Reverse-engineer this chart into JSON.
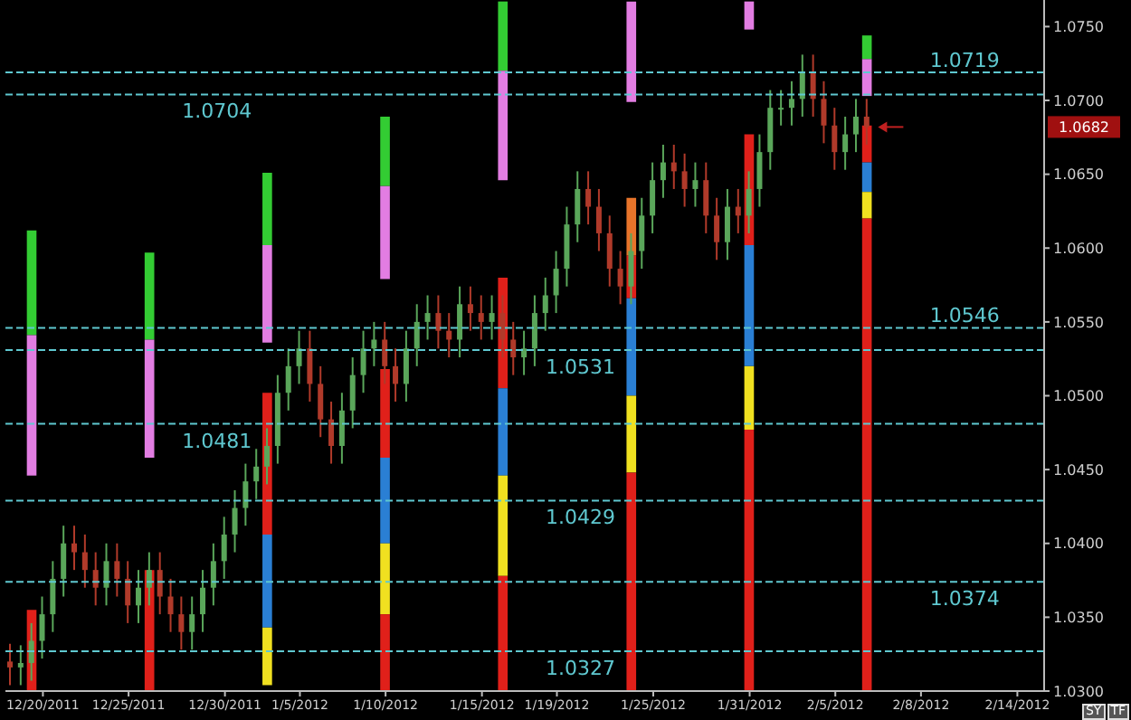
{
  "chart_data": {
    "type": "candlestick",
    "colors": [
      "#b03a2a",
      "#5aa65a",
      "#5aa65a",
      "#5aa65a",
      "#5aa65a",
      "#5aa65a",
      "#b03a2a",
      "#b03a2a",
      "#b03a2a",
      "#5aa65a",
      "#b03a2a",
      "#b03a2a",
      "#5aa65a",
      "#5aa65a",
      "#b03a2a",
      "#b03a2a",
      "#b03a2a",
      "#5aa65a",
      "#5aa65a",
      "#5aa65a",
      "#5aa65a",
      "#5aa65a",
      "#5aa65a",
      "#5aa65a",
      "#5aa65a",
      "#5aa65a",
      "#5aa65a",
      "#5aa65a",
      "#b03a2a",
      "#b03a2a",
      "#b03a2a",
      "#5aa65a",
      "#5aa65a",
      "#5aa65a",
      "#5aa65a",
      "#b03a2a",
      "#b03a2a",
      "#5aa65a",
      "#5aa65a",
      "#5aa65a",
      "#b03a2a",
      "#b03a2a",
      "#5aa65a",
      "#b03a2a",
      "#b03a2a",
      "#5aa65a",
      "#b03a2a",
      "#b03a2a",
      "#5aa65a",
      "#5aa65a",
      "#5aa65a",
      "#5aa65a",
      "#5aa65a",
      "#5aa65a",
      "#b03a2a",
      "#b03a2a",
      "#b03a2a",
      "#b03a2a",
      "#5aa65a",
      "#5aa65a",
      "#5aa65a",
      "#5aa65a",
      "#b03a2a",
      "#b03a2a",
      "#5aa65a",
      "#b03a2a",
      "#b03a2a",
      "#5aa65a",
      "#b03a2a",
      "#5aa65a",
      "#5aa65a",
      "#5aa65a",
      "#5aa65a",
      "#5aa65a",
      "#5aa65a",
      "#b03a2a",
      "#b03a2a",
      "#b03a2a",
      "#5aa65a",
      "#5aa65a",
      "#b03a2a",
      null,
      null,
      null,
      null,
      null,
      null,
      null,
      null,
      null,
      null,
      null,
      null,
      null,
      null,
      null,
      null
    ],
    "categories": [
      null,
      null,
      null,
      "12/20/2011",
      null,
      null,
      null,
      null,
      null,
      null,
      null,
      "12/25/2011",
      null,
      null,
      null,
      null,
      null,
      null,
      null,
      null,
      "12/30/2011",
      null,
      null,
      null,
      null,
      null,
      null,
      "1/5/2012",
      null,
      null,
      null,
      null,
      null,
      null,
      null,
      "1/10/2012",
      null,
      null,
      null,
      null,
      null,
      null,
      null,
      null,
      "1/15/2012",
      null,
      null,
      null,
      null,
      null,
      null,
      "1/19/2012",
      null,
      null,
      null,
      null,
      null,
      null,
      null,
      null,
      "1/25/2012",
      null,
      null,
      null,
      null,
      null,
      null,
      null,
      null,
      "1/31/2012",
      null,
      null,
      null,
      null,
      null,
      null,
      null,
      "2/5/2012",
      null,
      null,
      null,
      null,
      null,
      null,
      null,
      "2/8/2012",
      null,
      null,
      null,
      null,
      null,
      null,
      null,
      null,
      "2/14/2012",
      null,
      null
    ],
    "ohlc": [
      [
        1.032,
        1.0332,
        1.0304,
        1.0316
      ],
      [
        1.0316,
        1.0331,
        1.0304,
        1.0319
      ],
      [
        1.0319,
        1.0346,
        1.0307,
        1.0334
      ],
      [
        1.0334,
        1.0364,
        1.0322,
        1.0352
      ],
      [
        1.0352,
        1.0388,
        1.034,
        1.0376
      ],
      [
        1.0376,
        1.0412,
        1.0364,
        1.04
      ],
      [
        1.04,
        1.0412,
        1.0382,
        1.0394
      ],
      [
        1.0394,
        1.0406,
        1.037,
        1.0382
      ],
      [
        1.0382,
        1.0394,
        1.0358,
        1.037
      ],
      [
        1.037,
        1.04,
        1.0358,
        1.0388
      ],
      [
        1.0388,
        1.04,
        1.0364,
        1.0376
      ],
      [
        1.0376,
        1.0388,
        1.0346,
        1.0358
      ],
      [
        1.0358,
        1.0382,
        1.0346,
        1.037
      ],
      [
        1.037,
        1.0394,
        1.0358,
        1.0382
      ],
      [
        1.0382,
        1.0394,
        1.0352,
        1.0364
      ],
      [
        1.0364,
        1.0376,
        1.034,
        1.0352
      ],
      [
        1.0352,
        1.0364,
        1.0328,
        1.034
      ],
      [
        1.034,
        1.0364,
        1.0328,
        1.0352
      ],
      [
        1.0352,
        1.0382,
        1.034,
        1.037
      ],
      [
        1.037,
        1.04,
        1.0358,
        1.0388
      ],
      [
        1.0388,
        1.0418,
        1.0376,
        1.0406
      ],
      [
        1.0406,
        1.0436,
        1.0394,
        1.0424
      ],
      [
        1.0424,
        1.0454,
        1.0412,
        1.0442
      ],
      [
        1.0442,
        1.0464,
        1.043,
        1.0452
      ],
      [
        1.0452,
        1.0478,
        1.044,
        1.0466
      ],
      [
        1.0466,
        1.0514,
        1.0454,
        1.0502
      ],
      [
        1.0502,
        1.0532,
        1.049,
        1.052
      ],
      [
        1.052,
        1.0544,
        1.0508,
        1.0532
      ],
      [
        1.0532,
        1.0544,
        1.0496,
        1.0508
      ],
      [
        1.0508,
        1.052,
        1.0472,
        1.0484
      ],
      [
        1.0484,
        1.0496,
        1.0454,
        1.0466
      ],
      [
        1.0466,
        1.0502,
        1.0454,
        1.049
      ],
      [
        1.049,
        1.0526,
        1.0478,
        1.0514
      ],
      [
        1.0514,
        1.0544,
        1.0502,
        1.0532
      ],
      [
        1.0532,
        1.055,
        1.052,
        1.0538
      ],
      [
        1.0538,
        1.055,
        1.0508,
        1.052
      ],
      [
        1.052,
        1.0532,
        1.0496,
        1.0508
      ],
      [
        1.0508,
        1.0544,
        1.0496,
        1.0532
      ],
      [
        1.0532,
        1.0562,
        1.052,
        1.055
      ],
      [
        1.055,
        1.0568,
        1.0538,
        1.0556
      ],
      [
        1.0556,
        1.0568,
        1.0532,
        1.0544
      ],
      [
        1.0544,
        1.0556,
        1.0526,
        1.0538
      ],
      [
        1.0538,
        1.0574,
        1.0526,
        1.0562
      ],
      [
        1.0562,
        1.0574,
        1.0544,
        1.0556
      ],
      [
        1.0556,
        1.0568,
        1.0538,
        1.055
      ],
      [
        1.055,
        1.0568,
        1.0538,
        1.0556
      ],
      [
        1.0556,
        1.0568,
        1.0526,
        1.0538
      ],
      [
        1.0538,
        1.055,
        1.0514,
        1.0526
      ],
      [
        1.0526,
        1.0544,
        1.0514,
        1.0532
      ],
      [
        1.0532,
        1.0568,
        1.052,
        1.0556
      ],
      [
        1.0556,
        1.058,
        1.0544,
        1.0568
      ],
      [
        1.0568,
        1.0598,
        1.0556,
        1.0586
      ],
      [
        1.0586,
        1.0628,
        1.0574,
        1.0616
      ],
      [
        1.0616,
        1.0652,
        1.0604,
        1.064
      ],
      [
        1.064,
        1.0652,
        1.0616,
        1.0628
      ],
      [
        1.0628,
        1.064,
        1.0598,
        1.061
      ],
      [
        1.061,
        1.0622,
        1.0574,
        1.0586
      ],
      [
        1.0586,
        1.0598,
        1.0562,
        1.0574
      ],
      [
        1.0574,
        1.061,
        1.0562,
        1.0598
      ],
      [
        1.0598,
        1.0634,
        1.0586,
        1.0622
      ],
      [
        1.0622,
        1.0658,
        1.061,
        1.0646
      ],
      [
        1.0646,
        1.067,
        1.0634,
        1.0658
      ],
      [
        1.0658,
        1.067,
        1.064,
        1.0652
      ],
      [
        1.0652,
        1.0664,
        1.0628,
        1.064
      ],
      [
        1.064,
        1.0658,
        1.0628,
        1.0646
      ],
      [
        1.0646,
        1.0658,
        1.061,
        1.0622
      ],
      [
        1.0622,
        1.0634,
        1.0592,
        1.0604
      ],
      [
        1.0604,
        1.064,
        1.0592,
        1.0628
      ],
      [
        1.0628,
        1.064,
        1.061,
        1.0622
      ],
      [
        1.0622,
        1.0652,
        1.061,
        1.064
      ],
      [
        1.064,
        1.0677,
        1.0628,
        1.0665
      ],
      [
        1.0665,
        1.0707,
        1.0653,
        1.0695
      ],
      [
        1.0695,
        1.0707,
        1.0683,
        1.0695
      ],
      [
        1.0695,
        1.0713,
        1.0683,
        1.0701
      ],
      [
        1.0701,
        1.0731,
        1.0689,
        1.0719
      ],
      [
        1.0719,
        1.0731,
        1.0689,
        1.0701
      ],
      [
        1.0701,
        1.0713,
        1.0671,
        1.0683
      ],
      [
        1.0683,
        1.0695,
        1.0653,
        1.0665
      ],
      [
        1.0665,
        1.0689,
        1.0653,
        1.0677
      ],
      [
        1.0677,
        1.0701,
        1.0665,
        1.0689
      ],
      [
        1.0689,
        1.0701,
        1.067,
        1.0682
      ],
      null,
      null,
      null,
      null,
      null,
      null,
      null,
      null,
      null,
      null,
      null,
      null,
      null,
      null,
      null,
      null
    ],
    "series": [
      {
        "type": "bar",
        "color": "#33cc33",
        "base": [
          null,
          null,
          1.0541,
          null,
          null,
          null,
          null,
          null,
          null,
          null,
          null,
          null,
          null,
          1.0538,
          null,
          null,
          null,
          null,
          null,
          null,
          null,
          null,
          null,
          null,
          1.0602,
          null,
          null,
          null,
          null,
          null,
          null,
          null,
          null,
          null,
          null,
          1.0642,
          null,
          null,
          null,
          null,
          null,
          null,
          null,
          null,
          null,
          null,
          1.072,
          null,
          null,
          null,
          null,
          null,
          null,
          null,
          null,
          null,
          null,
          null,
          null,
          null,
          null,
          null,
          null,
          null,
          null,
          null,
          null,
          null,
          null,
          null,
          null,
          null,
          null,
          null,
          null,
          null,
          null,
          null,
          null,
          null,
          1.0728,
          null,
          null,
          null,
          null,
          null,
          null,
          null,
          null,
          null,
          null,
          null,
          null,
          null,
          null,
          null,
          null
        ],
        "values": [
          null,
          null,
          0.0071,
          null,
          null,
          null,
          null,
          null,
          null,
          null,
          null,
          null,
          null,
          0.0059,
          null,
          null,
          null,
          null,
          null,
          null,
          null,
          null,
          null,
          null,
          0.0049,
          null,
          null,
          null,
          null,
          null,
          null,
          null,
          null,
          null,
          null,
          0.0047,
          null,
          null,
          null,
          null,
          null,
          null,
          null,
          null,
          null,
          null,
          0.0047,
          null,
          null,
          null,
          null,
          null,
          null,
          null,
          null,
          null,
          null,
          null,
          null,
          null,
          null,
          null,
          null,
          null,
          null,
          null,
          null,
          null,
          null,
          null,
          null,
          null,
          null,
          null,
          null,
          null,
          null,
          null,
          null,
          null,
          0.0016,
          null,
          null,
          null,
          null,
          null,
          null,
          null,
          null,
          null,
          null,
          null,
          null,
          null,
          null,
          null,
          null
        ]
      },
      {
        "type": "bar",
        "color": "#e27de2",
        "base": [
          null,
          null,
          1.0446,
          null,
          null,
          null,
          null,
          null,
          null,
          null,
          null,
          null,
          null,
          1.0458,
          null,
          null,
          null,
          null,
          null,
          null,
          null,
          null,
          null,
          null,
          1.0536,
          null,
          null,
          null,
          null,
          null,
          null,
          null,
          null,
          null,
          null,
          1.0579,
          null,
          null,
          null,
          null,
          null,
          null,
          null,
          null,
          null,
          null,
          1.0646,
          null,
          null,
          null,
          null,
          null,
          null,
          null,
          null,
          null,
          null,
          null,
          1.0699,
          null,
          null,
          null,
          null,
          null,
          null,
          null,
          null,
          null,
          null,
          1.0748,
          null,
          null,
          null,
          null,
          null,
          null,
          null,
          null,
          null,
          null,
          1.0703,
          null,
          null,
          null,
          null,
          null,
          null,
          null,
          null,
          null,
          null,
          null,
          null,
          null,
          null,
          null,
          null
        ],
        "values": [
          null,
          null,
          0.0095,
          null,
          null,
          null,
          null,
          null,
          null,
          null,
          null,
          null,
          null,
          0.008,
          null,
          null,
          null,
          null,
          null,
          null,
          null,
          null,
          null,
          null,
          0.0066,
          null,
          null,
          null,
          null,
          null,
          null,
          null,
          null,
          null,
          null,
          0.0063,
          null,
          null,
          null,
          null,
          null,
          null,
          null,
          null,
          null,
          null,
          0.0074,
          null,
          null,
          null,
          null,
          null,
          null,
          null,
          null,
          null,
          null,
          null,
          0.0068,
          null,
          null,
          null,
          null,
          null,
          null,
          null,
          null,
          null,
          null,
          0.0019,
          null,
          null,
          null,
          null,
          null,
          null,
          null,
          null,
          null,
          null,
          0.0025,
          null,
          null,
          null,
          null,
          null,
          null,
          null,
          null,
          null,
          null,
          null,
          null,
          null,
          null,
          null,
          null
        ]
      },
      {
        "type": "bar",
        "color": "#e0201a",
        "base": [
          null,
          null,
          null,
          null,
          null,
          null,
          null,
          null,
          null,
          null,
          null,
          null,
          null,
          null,
          null,
          null,
          null,
          null,
          null,
          null,
          null,
          null,
          null,
          null,
          1.0406,
          null,
          null,
          null,
          null,
          null,
          null,
          null,
          null,
          null,
          null,
          1.0458,
          null,
          null,
          null,
          null,
          null,
          null,
          null,
          null,
          null,
          null,
          1.0505,
          null,
          null,
          null,
          null,
          null,
          null,
          null,
          null,
          null,
          null,
          null,
          1.0566,
          null,
          null,
          null,
          null,
          null,
          null,
          null,
          null,
          null,
          null,
          1.0602,
          null,
          null,
          null,
          null,
          null,
          null,
          null,
          null,
          null,
          null,
          1.0658,
          null,
          null,
          null,
          null,
          null,
          null,
          null,
          null,
          null,
          null,
          null,
          null,
          null,
          null,
          null,
          null
        ],
        "values": [
          null,
          null,
          null,
          null,
          null,
          null,
          null,
          null,
          null,
          null,
          null,
          null,
          null,
          null,
          null,
          null,
          null,
          null,
          null,
          null,
          null,
          null,
          null,
          null,
          0.0096,
          null,
          null,
          null,
          null,
          null,
          null,
          null,
          null,
          null,
          null,
          0.006,
          null,
          null,
          null,
          null,
          null,
          null,
          null,
          null,
          null,
          null,
          0.0075,
          null,
          null,
          null,
          null,
          null,
          null,
          null,
          null,
          null,
          null,
          null,
          0.0029,
          null,
          null,
          null,
          null,
          null,
          null,
          null,
          null,
          null,
          null,
          0.0075,
          null,
          null,
          null,
          null,
          null,
          null,
          null,
          null,
          null,
          null,
          0.0025,
          null,
          null,
          null,
          null,
          null,
          null,
          null,
          null,
          null,
          null,
          null,
          null,
          null,
          null,
          null,
          null
        ]
      },
      {
        "type": "bar",
        "color": "#e8742a",
        "base": [
          null,
          null,
          null,
          null,
          null,
          null,
          null,
          null,
          null,
          null,
          null,
          null,
          null,
          null,
          null,
          null,
          null,
          null,
          null,
          null,
          null,
          null,
          null,
          null,
          null,
          null,
          null,
          null,
          null,
          null,
          null,
          null,
          null,
          null,
          null,
          null,
          null,
          null,
          null,
          null,
          null,
          null,
          null,
          null,
          null,
          null,
          null,
          null,
          null,
          null,
          null,
          null,
          null,
          null,
          null,
          null,
          null,
          null,
          1.0595,
          null,
          null,
          null,
          null,
          null,
          null,
          null,
          null,
          null,
          null,
          null,
          null,
          null,
          null,
          null,
          null,
          null,
          null,
          null,
          null,
          null,
          null,
          null,
          null,
          null,
          null,
          null,
          null,
          null,
          null,
          null,
          null,
          null,
          null,
          null,
          null,
          null,
          null
        ],
        "values": [
          null,
          null,
          null,
          null,
          null,
          null,
          null,
          null,
          null,
          null,
          null,
          null,
          null,
          null,
          null,
          null,
          null,
          null,
          null,
          null,
          null,
          null,
          null,
          null,
          null,
          null,
          null,
          null,
          null,
          null,
          null,
          null,
          null,
          null,
          null,
          null,
          null,
          null,
          null,
          null,
          null,
          null,
          null,
          null,
          null,
          null,
          null,
          null,
          null,
          null,
          null,
          null,
          null,
          null,
          null,
          null,
          null,
          null,
          0.0039,
          null,
          null,
          null,
          null,
          null,
          null,
          null,
          null,
          null,
          null,
          null,
          null,
          null,
          null,
          null,
          null,
          null,
          null,
          null,
          null,
          null,
          null,
          null,
          null,
          null,
          null,
          null,
          null,
          null,
          null,
          null,
          null,
          null,
          null,
          null,
          null,
          null,
          null
        ]
      },
      {
        "type": "bar",
        "color": "#2a7fd4",
        "base": [
          null,
          null,
          null,
          null,
          null,
          null,
          null,
          null,
          null,
          null,
          null,
          null,
          null,
          null,
          null,
          null,
          null,
          null,
          null,
          null,
          null,
          null,
          null,
          null,
          1.0343,
          null,
          null,
          null,
          null,
          null,
          null,
          null,
          null,
          null,
          null,
          1.04,
          null,
          null,
          null,
          null,
          null,
          null,
          null,
          null,
          null,
          null,
          1.0446,
          null,
          null,
          null,
          null,
          null,
          null,
          null,
          null,
          null,
          null,
          null,
          1.05,
          null,
          null,
          null,
          null,
          null,
          null,
          null,
          null,
          null,
          null,
          1.052,
          null,
          null,
          null,
          null,
          null,
          null,
          null,
          null,
          null,
          null,
          1.0638,
          null,
          null,
          null,
          null,
          null,
          null,
          null,
          null,
          null,
          null,
          null,
          null,
          null,
          null,
          null,
          null
        ],
        "values": [
          null,
          null,
          null,
          null,
          null,
          null,
          null,
          null,
          null,
          null,
          null,
          null,
          null,
          null,
          null,
          null,
          null,
          null,
          null,
          null,
          null,
          null,
          null,
          null,
          0.0063,
          null,
          null,
          null,
          null,
          null,
          null,
          null,
          null,
          null,
          null,
          0.0058,
          null,
          null,
          null,
          null,
          null,
          null,
          null,
          null,
          null,
          null,
          0.0059,
          null,
          null,
          null,
          null,
          null,
          null,
          null,
          null,
          null,
          null,
          null,
          0.0066,
          null,
          null,
          null,
          null,
          null,
          null,
          null,
          null,
          null,
          null,
          0.0082,
          null,
          null,
          null,
          null,
          null,
          null,
          null,
          null,
          null,
          null,
          0.002,
          null,
          null,
          null,
          null,
          null,
          null,
          null,
          null,
          null,
          null,
          null,
          null,
          null,
          null,
          null,
          null
        ]
      },
      {
        "type": "bar",
        "color": "#f0e020",
        "base": [
          null,
          null,
          null,
          null,
          null,
          null,
          null,
          null,
          null,
          null,
          null,
          null,
          null,
          null,
          null,
          null,
          null,
          null,
          null,
          null,
          null,
          null,
          null,
          null,
          1.0304,
          null,
          null,
          null,
          null,
          null,
          null,
          null,
          null,
          null,
          null,
          1.0352,
          null,
          null,
          null,
          null,
          null,
          null,
          null,
          null,
          null,
          null,
          1.0378,
          null,
          null,
          null,
          null,
          null,
          null,
          null,
          null,
          null,
          null,
          null,
          1.0448,
          null,
          null,
          null,
          null,
          null,
          null,
          null,
          null,
          null,
          null,
          1.0477,
          null,
          null,
          null,
          null,
          null,
          null,
          null,
          null,
          null,
          null,
          1.062,
          null,
          null,
          null,
          null,
          null,
          null,
          null,
          null,
          null,
          null,
          null,
          null,
          null,
          null,
          null,
          null
        ],
        "values": [
          null,
          null,
          null,
          null,
          null,
          null,
          null,
          null,
          null,
          null,
          null,
          null,
          null,
          null,
          null,
          null,
          null,
          null,
          null,
          null,
          null,
          null,
          null,
          null,
          0.0039,
          null,
          null,
          null,
          null,
          null,
          null,
          null,
          null,
          null,
          null,
          0.0048,
          null,
          null,
          null,
          null,
          null,
          null,
          null,
          null,
          null,
          null,
          0.0068,
          null,
          null,
          null,
          null,
          null,
          null,
          null,
          null,
          null,
          null,
          null,
          0.0052,
          null,
          null,
          null,
          null,
          null,
          null,
          null,
          null,
          null,
          null,
          0.0043,
          null,
          null,
          null,
          null,
          null,
          null,
          null,
          null,
          null,
          null,
          0.0018,
          null,
          null,
          null,
          null,
          null,
          null,
          null,
          null,
          null,
          null,
          null,
          null,
          null,
          null,
          null,
          null
        ]
      },
      {
        "type": "bar",
        "color": "#e0201a",
        "base": [
          null,
          null,
          1.03,
          null,
          null,
          null,
          null,
          null,
          null,
          null,
          null,
          null,
          null,
          1.03,
          null,
          null,
          null,
          null,
          null,
          null,
          null,
          null,
          null,
          null,
          null,
          null,
          null,
          null,
          null,
          null,
          null,
          null,
          null,
          null,
          null,
          1.03,
          null,
          null,
          null,
          null,
          null,
          null,
          null,
          null,
          null,
          null,
          1.03,
          null,
          null,
          null,
          null,
          null,
          null,
          null,
          null,
          null,
          null,
          null,
          1.03,
          null,
          null,
          null,
          null,
          null,
          null,
          null,
          null,
          null,
          null,
          1.03,
          null,
          null,
          null,
          null,
          null,
          null,
          null,
          null,
          null,
          null,
          1.03,
          null,
          null,
          null,
          null,
          null,
          null,
          null,
          null,
          null,
          null,
          null,
          null,
          null,
          null,
          null,
          null
        ],
        "values": [
          null,
          null,
          0.0055,
          null,
          null,
          null,
          null,
          null,
          null,
          null,
          null,
          null,
          null,
          0.0082,
          null,
          null,
          null,
          null,
          null,
          null,
          null,
          null,
          null,
          null,
          null,
          null,
          null,
          null,
          null,
          null,
          null,
          null,
          null,
          null,
          null,
          0.0052,
          null,
          null,
          null,
          null,
          null,
          null,
          null,
          null,
          null,
          null,
          0.0078,
          null,
          null,
          null,
          null,
          null,
          null,
          null,
          null,
          null,
          null,
          null,
          0.0148,
          null,
          null,
          null,
          null,
          null,
          null,
          null,
          null,
          null,
          null,
          0.0177,
          null,
          null,
          null,
          null,
          null,
          null,
          null,
          null,
          null,
          null,
          0.032,
          null,
          null,
          null,
          null,
          null,
          null,
          null,
          null,
          null,
          null,
          null,
          null,
          null,
          null,
          null,
          null
        ]
      }
    ],
    "ylim": [
      1.03,
      1.0768
    ],
    "yticks": [
      {
        "value": 1.03,
        "label": "1.0300"
      },
      {
        "value": 1.035,
        "label": "1.0350"
      },
      {
        "value": 1.04,
        "label": "1.0400"
      },
      {
        "value": 1.045,
        "label": "1.0450"
      },
      {
        "value": 1.05,
        "label": "1.0500"
      },
      {
        "value": 1.055,
        "label": "1.0550"
      },
      {
        "value": 1.06,
        "label": "1.0600"
      },
      {
        "value": 1.065,
        "label": "1.0650"
      },
      {
        "value": 1.07,
        "label": "1.0700"
      },
      {
        "value": 1.075,
        "label": "1.0750"
      }
    ],
    "ref_lines": [
      {
        "axis": "y",
        "value": 1.0704,
        "label": "1.0704",
        "color": "#5fc8d0",
        "line_style": "dashed"
      },
      {
        "axis": "y",
        "value": 1.0481,
        "label": "1.0481",
        "color": "#5fc8d0",
        "line_style": "dashed"
      },
      {
        "axis": "y",
        "value": 1.0531,
        "label": "1.0531",
        "color": "#5fc8d0",
        "line_style": "dashed"
      },
      {
        "axis": "y",
        "value": 1.0429,
        "label": "1.0429",
        "color": "#5fc8d0",
        "line_style": "dashed"
      },
      {
        "axis": "y",
        "value": 1.0327,
        "label": "1.0327",
        "color": "#5fc8d0",
        "line_style": "dashed"
      },
      {
        "axis": "y",
        "value": 1.0719,
        "label": "1.0719",
        "color": "#5fc8d0",
        "line_style": "dashed"
      },
      {
        "axis": "y",
        "value": 1.0546,
        "label": "1.0546",
        "color": "#5fc8d0",
        "line_style": "dashed"
      },
      {
        "axis": "y",
        "value": 1.0374,
        "label": "1.0374",
        "color": "#5fc8d0",
        "line_style": "dashed"
      }
    ],
    "annotations": [
      {
        "text": "1.0682",
        "y": 1.0682
      },
      "SY",
      "TF"
    ]
  }
}
